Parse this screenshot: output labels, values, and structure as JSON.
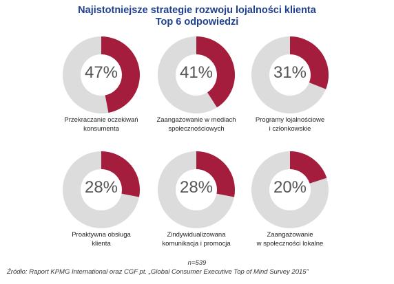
{
  "title_line1": "Najistotniejsze strategie rozwoju lojalności klienta",
  "title_line2": "Top 6 odpowiedzi",
  "colors": {
    "accent": "#a51d3c",
    "track": "#dcdcdc",
    "title": "#1f3f8f"
  },
  "chart_data": {
    "type": "pie",
    "subtype": "donut",
    "items": [
      {
        "label_line1": "Przekraczanie oczekiwań",
        "label_line2": "konsumenta",
        "value": 47,
        "display": "47%"
      },
      {
        "label_line1": "Zaangażowanie w mediach",
        "label_line2": "społecznościowych",
        "value": 41,
        "display": "41%"
      },
      {
        "label_line1": "Programy lojalnościowe",
        "label_line2": "i członkowskie",
        "value": 31,
        "display": "31%"
      },
      {
        "label_line1": "Proaktywna obsługa",
        "label_line2": "klienta",
        "value": 28,
        "display": "28%"
      },
      {
        "label_line1": "Zindywidualizowana",
        "label_line2": "komunikacja i promocja",
        "value": 28,
        "display": "28%"
      },
      {
        "label_line1": "Zaangażowanie",
        "label_line2": "w społeczności lokalne",
        "value": 20,
        "display": "20%"
      }
    ]
  },
  "sample_size": "n=539",
  "source": "Źródło: Raport KPMG International oraz CGF pt. „Global Consumer Executive Top of Mind Survey 2015”"
}
